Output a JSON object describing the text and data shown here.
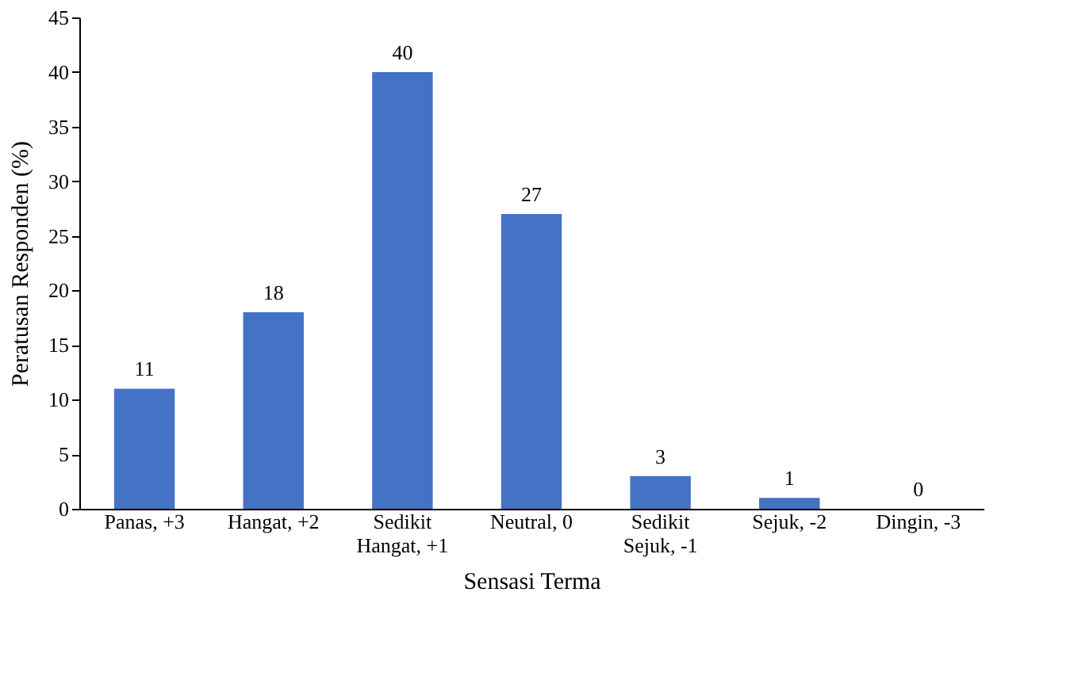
{
  "chart_data": {
    "type": "bar",
    "xlabel": "Sensasi Terma",
    "ylabel": "Peratusan Responden (%)",
    "categories": [
      "Panas, +3",
      "Hangat, +2",
      "Sedikit\nHangat, +1",
      "Neutral, 0",
      "Sedikit\nSejuk, -1",
      "Sejuk, -2",
      "Dingin, -3"
    ],
    "values": [
      11,
      18,
      40,
      27,
      3,
      1,
      0
    ],
    "color": "#4472c4",
    "data_labels": true,
    "ylim": [
      0,
      45
    ],
    "yticks": [
      0,
      5,
      10,
      15,
      20,
      25,
      30,
      35,
      40,
      45
    ],
    "grid": false
  }
}
